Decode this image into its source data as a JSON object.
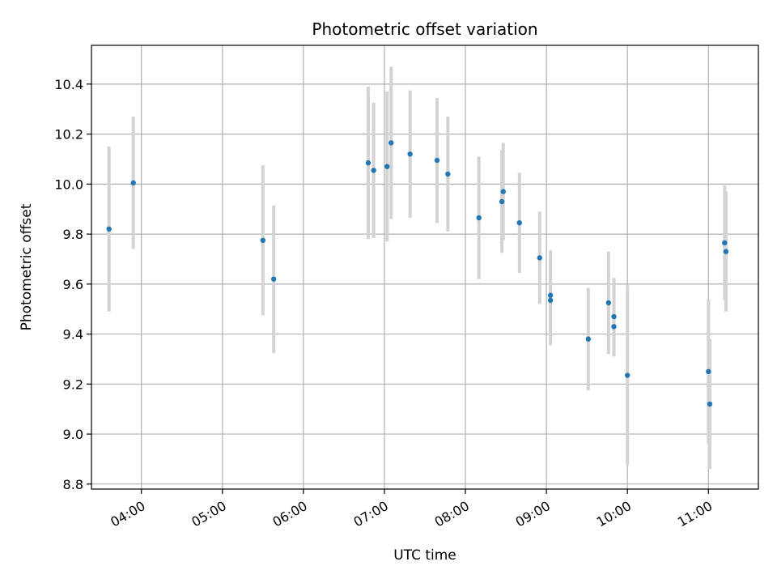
{
  "chart_data": {
    "type": "scatter",
    "title": "Photometric offset variation",
    "xlabel": "UTC time",
    "ylabel": "Photometric offset",
    "x_unit": "UTC time (HH:MM)",
    "xlim": [
      "03:23",
      "11:37"
    ],
    "ylim": [
      8.78,
      10.555
    ],
    "grid": true,
    "x_ticks": [
      "04:00",
      "05:00",
      "06:00",
      "07:00",
      "08:00",
      "09:00",
      "10:00",
      "11:00"
    ],
    "y_ticks": [
      8.8,
      9.0,
      9.2,
      9.4,
      9.6,
      9.8,
      10.0,
      10.2,
      10.4
    ],
    "y_tick_labels": [
      "8.8",
      "9.0",
      "9.2",
      "9.4",
      "9.6",
      "9.8",
      "10.0",
      "10.2",
      "10.4"
    ],
    "colors": {
      "marker": "#1f77b4",
      "errorbar": "#d3d3d3",
      "grid": "#b0b0b0"
    },
    "points": [
      {
        "x": "03:36",
        "y": 9.82,
        "err": 0.33
      },
      {
        "x": "03:54",
        "y": 10.005,
        "err": 0.265
      },
      {
        "x": "05:30",
        "y": 9.775,
        "err": 0.3
      },
      {
        "x": "05:38",
        "y": 9.62,
        "err": 0.295
      },
      {
        "x": "06:48",
        "y": 10.085,
        "err": 0.305
      },
      {
        "x": "06:52",
        "y": 10.055,
        "err": 0.27
      },
      {
        "x": "07:02",
        "y": 10.07,
        "err": 0.3
      },
      {
        "x": "07:05",
        "y": 10.165,
        "err": 0.305
      },
      {
        "x": "07:19",
        "y": 10.12,
        "err": 0.255
      },
      {
        "x": "07:39",
        "y": 10.095,
        "err": 0.25
      },
      {
        "x": "07:47",
        "y": 10.04,
        "err": 0.23
      },
      {
        "x": "08:10",
        "y": 9.865,
        "err": 0.245
      },
      {
        "x": "08:27",
        "y": 9.93,
        "err": 0.205
      },
      {
        "x": "08:28",
        "y": 9.97,
        "err": 0.195
      },
      {
        "x": "08:40",
        "y": 9.845,
        "err": 0.2
      },
      {
        "x": "08:55",
        "y": 9.705,
        "err": 0.185
      },
      {
        "x": "09:03",
        "y": 9.535,
        "err": 0.18
      },
      {
        "x": "09:03",
        "y": 9.555,
        "err": 0.18
      },
      {
        "x": "09:31",
        "y": 9.38,
        "err": 0.205
      },
      {
        "x": "09:46",
        "y": 9.525,
        "err": 0.205
      },
      {
        "x": "09:50",
        "y": 9.43,
        "err": 0.12
      },
      {
        "x": "09:50",
        "y": 9.47,
        "err": 0.155
      },
      {
        "x": "10:00",
        "y": 9.235,
        "err": 0.36
      },
      {
        "x": "11:00",
        "y": 9.25,
        "err": 0.29
      },
      {
        "x": "11:01",
        "y": 9.12,
        "err": 0.26
      },
      {
        "x": "11:12",
        "y": 9.765,
        "err": 0.23
      },
      {
        "x": "11:13",
        "y": 9.73,
        "err": 0.24
      }
    ]
  }
}
